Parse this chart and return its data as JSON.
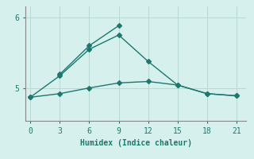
{
  "xlabel": "Humidex (Indice chaleur)",
  "background_color": "#d6f0ee",
  "line_color": "#1a7a6e",
  "grid_color": "#b8d8d4",
  "xlim": [
    -0.5,
    22
  ],
  "ylim": [
    4.55,
    6.15
  ],
  "xticks": [
    0,
    3,
    6,
    9,
    12,
    15,
    18,
    21
  ],
  "yticks": [
    5,
    6
  ],
  "line1_x": [
    0,
    3,
    6,
    9,
    12,
    15,
    18,
    21
  ],
  "line1_y": [
    4.88,
    4.93,
    5.01,
    5.08,
    5.1,
    5.05,
    4.93,
    4.9
  ],
  "line2_x": [
    0,
    3,
    6,
    9,
    12,
    15,
    18,
    21
  ],
  "line2_y": [
    4.88,
    5.18,
    5.55,
    5.75,
    5.38,
    5.05,
    4.93,
    4.9
  ],
  "line3_x": [
    3,
    6,
    9
  ],
  "line3_y": [
    5.2,
    5.6,
    5.88
  ],
  "marker_size": 3,
  "line_width": 1.0
}
